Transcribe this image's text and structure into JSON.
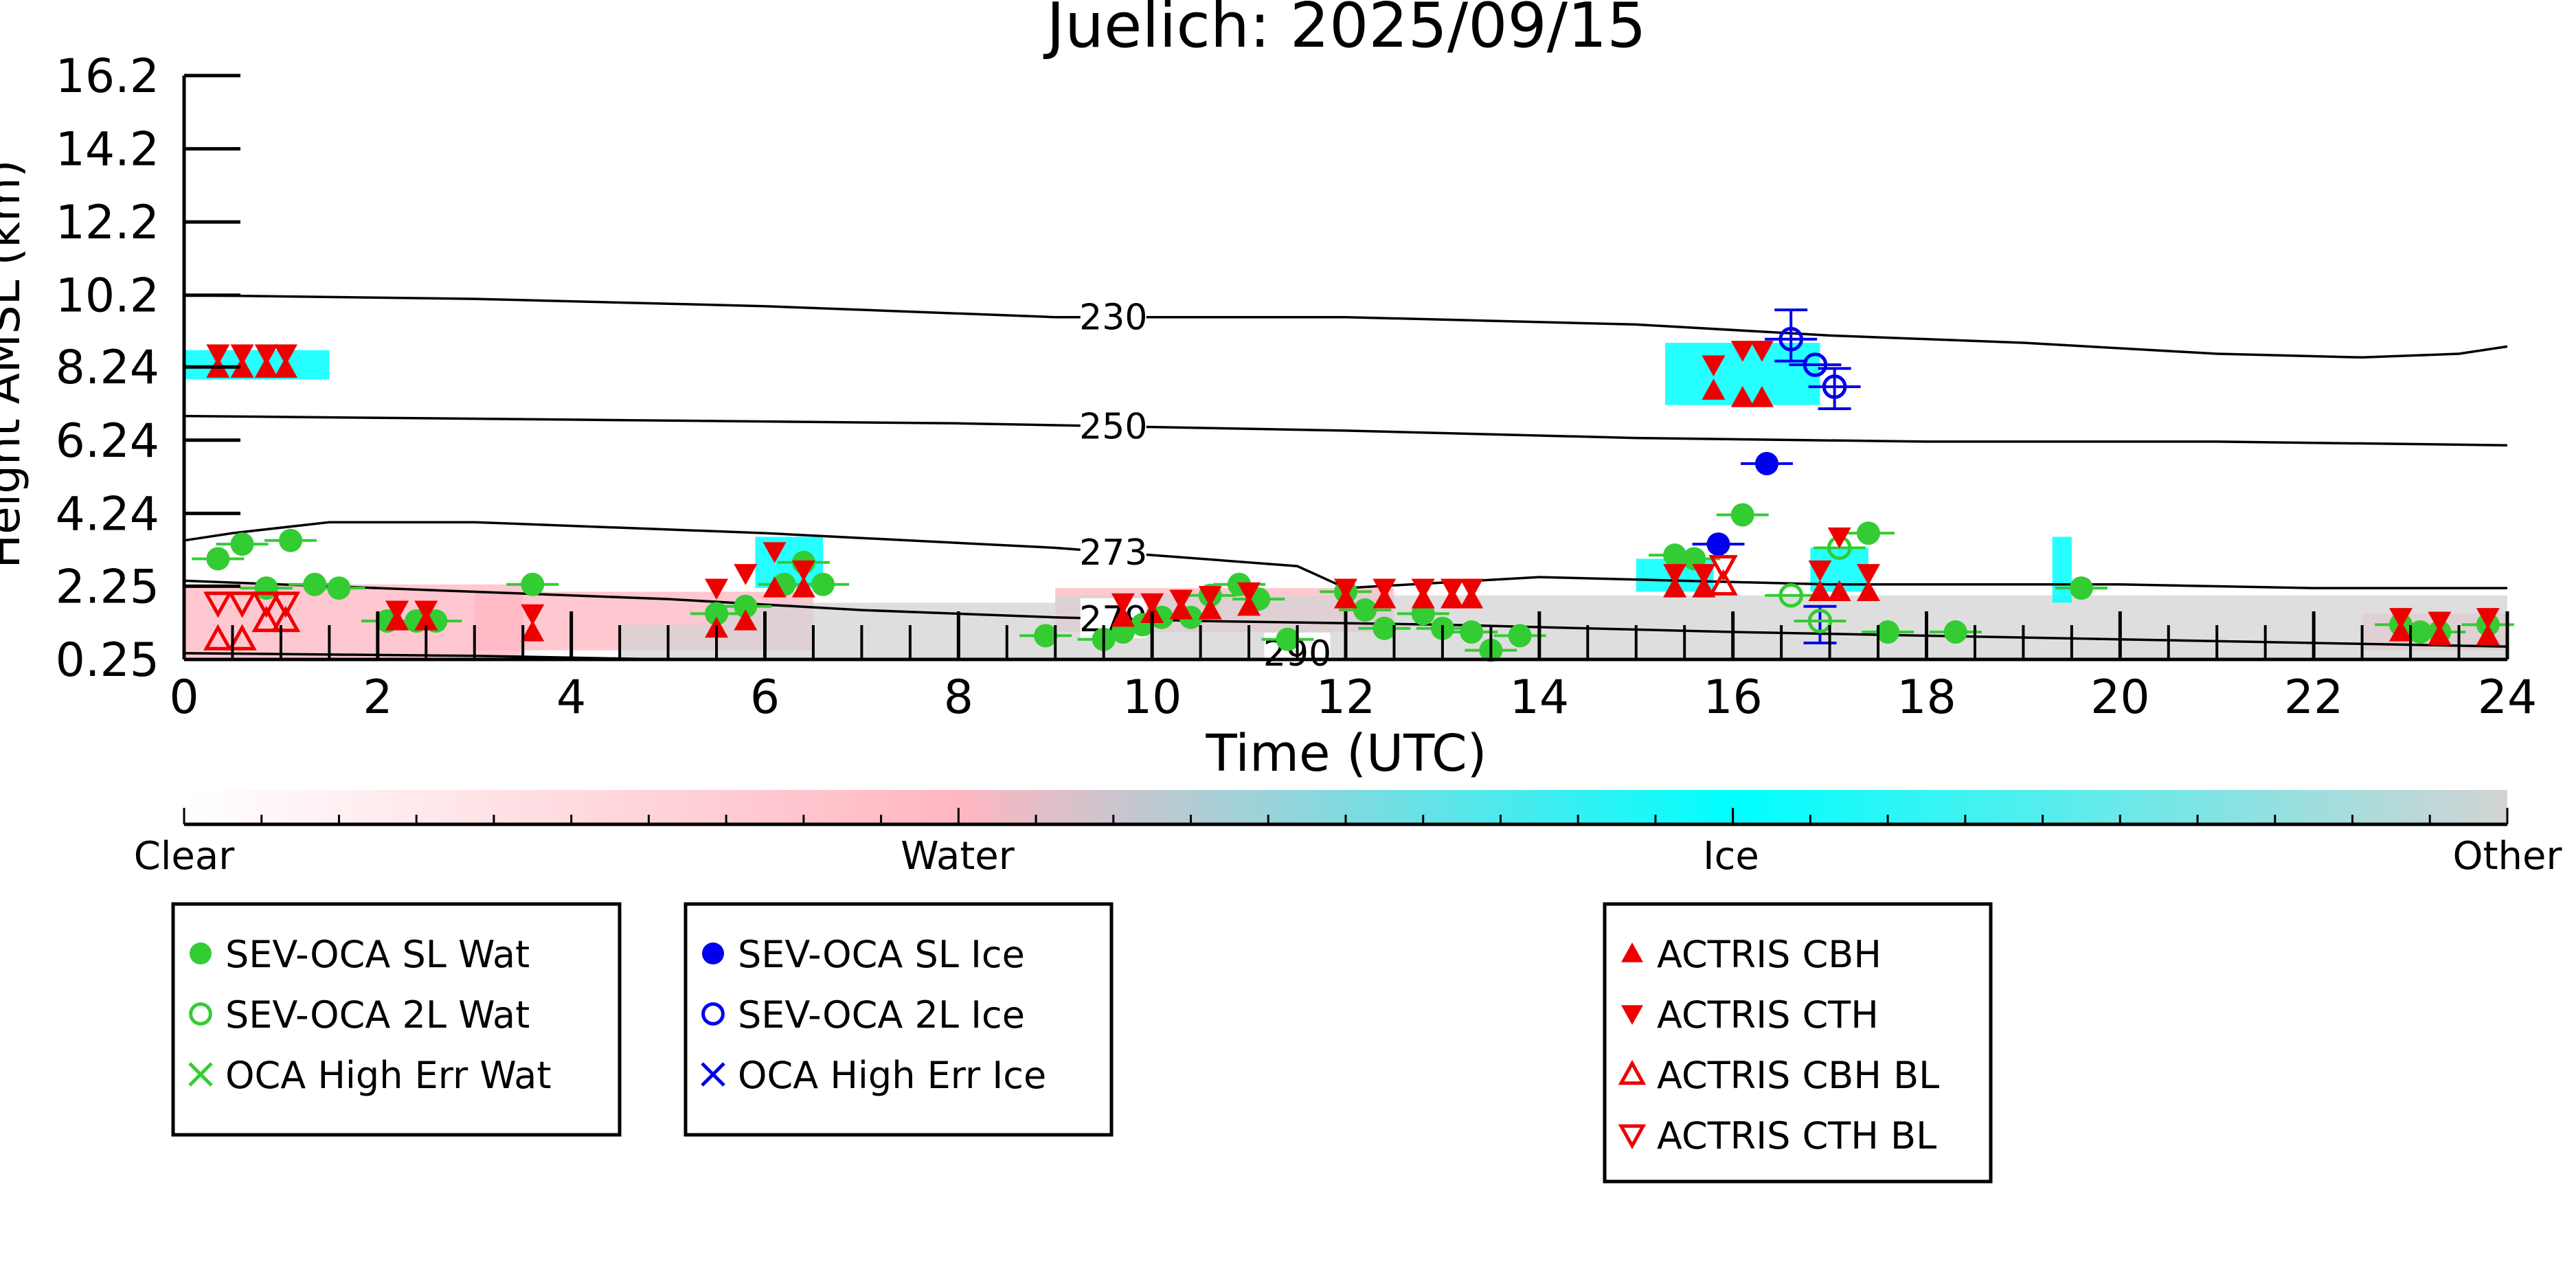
{
  "chart_data": {
    "type": "scatter",
    "title": "Juelich: 2025/09/15",
    "xlabel": "Time (UTC)",
    "ylabel": "Height AMSL (km)",
    "xlim": [
      0,
      24
    ],
    "ylim": [
      0.25,
      16.2
    ],
    "x_ticks": [
      "0",
      "2",
      "4",
      "6",
      "8",
      "10",
      "12",
      "14",
      "16",
      "18",
      "20",
      "22",
      "24"
    ],
    "y_ticks": [
      "0.25",
      "2.25",
      "4.24",
      "6.24",
      "8.24",
      "10.2",
      "12.2",
      "14.2",
      "16.2"
    ],
    "colorbar": {
      "labels": [
        "Clear",
        "Water",
        "Ice",
        "Other"
      ],
      "colors": [
        "#ffffff",
        "#ffb6c1",
        "#00ffff",
        "#d3d3d3"
      ]
    },
    "isotherms": [
      {
        "label": "230",
        "label_x": 9.6,
        "points": [
          [
            0,
            10.2
          ],
          [
            3,
            10.1
          ],
          [
            6,
            9.9
          ],
          [
            9,
            9.6
          ],
          [
            12,
            9.6
          ],
          [
            15,
            9.4
          ],
          [
            17,
            9.1
          ],
          [
            19,
            8.9
          ],
          [
            21,
            8.6
          ],
          [
            22.5,
            8.5
          ],
          [
            23.5,
            8.6
          ],
          [
            24,
            8.8
          ]
        ]
      },
      {
        "label": "250",
        "label_x": 9.6,
        "points": [
          [
            0,
            6.9
          ],
          [
            4,
            6.8
          ],
          [
            8,
            6.7
          ],
          [
            10,
            6.6
          ],
          [
            12,
            6.5
          ],
          [
            15,
            6.3
          ],
          [
            18,
            6.2
          ],
          [
            21,
            6.2
          ],
          [
            24,
            6.1
          ]
        ]
      },
      {
        "label": "273",
        "label_x": 9.6,
        "points": [
          [
            0,
            3.5
          ],
          [
            0.5,
            3.7
          ],
          [
            1.5,
            4.0
          ],
          [
            3,
            4.0
          ],
          [
            6,
            3.7
          ],
          [
            9,
            3.3
          ],
          [
            10.5,
            3.0
          ],
          [
            11.5,
            2.8
          ],
          [
            12,
            2.2
          ],
          [
            14,
            2.5
          ],
          [
            17,
            2.3
          ],
          [
            20,
            2.3
          ],
          [
            22,
            2.2
          ],
          [
            24,
            2.2
          ]
        ]
      },
      {
        "label": "279",
        "label_x": 9.6,
        "points": [
          [
            0,
            2.4
          ],
          [
            2,
            2.2
          ],
          [
            5,
            1.9
          ],
          [
            7,
            1.6
          ],
          [
            9,
            1.4
          ],
          [
            10.5,
            1.3
          ],
          [
            13,
            1.2
          ],
          [
            16,
            1.0
          ],
          [
            18,
            0.9
          ],
          [
            20,
            0.8
          ],
          [
            22,
            0.7
          ],
          [
            24,
            0.6
          ]
        ]
      },
      {
        "label": "290",
        "label_x": 11.5,
        "points": [
          [
            0,
            0.42
          ],
          [
            3,
            0.35
          ],
          [
            5,
            0.25
          ]
        ]
      }
    ],
    "cloud_regions": [
      {
        "phase": "Ice",
        "x0": 0.0,
        "x1": 1.5,
        "y0": 7.9,
        "y1": 8.7
      },
      {
        "phase": "Ice",
        "x0": 15.3,
        "x1": 16.9,
        "y0": 7.2,
        "y1": 8.9
      },
      {
        "phase": "Ice",
        "x0": 5.9,
        "x1": 6.6,
        "y0": 2.2,
        "y1": 3.6
      },
      {
        "phase": "Ice",
        "x0": 15.0,
        "x1": 15.8,
        "y0": 2.1,
        "y1": 3.0
      },
      {
        "phase": "Ice",
        "x0": 16.8,
        "x1": 17.4,
        "y0": 2.1,
        "y1": 3.3
      },
      {
        "phase": "Ice",
        "x0": 19.3,
        "x1": 19.5,
        "y0": 1.8,
        "y1": 3.6
      },
      {
        "phase": "Water",
        "x0": 0.0,
        "x1": 3.5,
        "y0": 0.3,
        "y1": 2.3
      },
      {
        "phase": "Water",
        "x0": 3.0,
        "x1": 6.5,
        "y0": 0.5,
        "y1": 2.1
      },
      {
        "phase": "Water",
        "x0": 9.0,
        "x1": 12.5,
        "y0": 1.0,
        "y1": 2.2
      },
      {
        "phase": "Water",
        "x0": 22.5,
        "x1": 24.0,
        "y0": 0.5,
        "y1": 1.5
      },
      {
        "phase": "Other",
        "x0": 5.5,
        "x1": 9.0,
        "y0": 0.25,
        "y1": 1.8
      },
      {
        "phase": "Other",
        "x0": 9.0,
        "x1": 24.0,
        "y0": 0.25,
        "y1": 2.0
      },
      {
        "phase": "Other",
        "x0": 4.5,
        "x1": 5.5,
        "y0": 0.25,
        "y1": 1.2
      }
    ],
    "series": [
      {
        "name": "SEV-OCA SL Wat",
        "color": "#33cc33",
        "marker": "filled-circle",
        "points": [
          [
            0.35,
            3.0
          ],
          [
            0.6,
            3.4
          ],
          [
            1.1,
            3.5
          ],
          [
            0.85,
            2.2
          ],
          [
            1.35,
            2.3
          ],
          [
            1.6,
            2.2
          ],
          [
            2.1,
            1.3
          ],
          [
            2.4,
            1.3
          ],
          [
            2.6,
            1.3
          ],
          [
            3.6,
            2.3
          ],
          [
            5.5,
            1.5
          ],
          [
            5.8,
            1.7
          ],
          [
            6.4,
            2.9
          ],
          [
            6.6,
            2.3
          ],
          [
            6.2,
            2.3
          ],
          [
            8.9,
            0.9
          ],
          [
            9.5,
            0.8
          ],
          [
            9.7,
            1.0
          ],
          [
            9.9,
            1.2
          ],
          [
            10.1,
            1.4
          ],
          [
            10.4,
            1.4
          ],
          [
            10.6,
            2.0
          ],
          [
            10.9,
            2.3
          ],
          [
            11.1,
            1.9
          ],
          [
            11.4,
            0.8
          ],
          [
            12.0,
            2.1
          ],
          [
            12.2,
            1.6
          ],
          [
            12.4,
            1.1
          ],
          [
            12.8,
            1.5
          ],
          [
            13.0,
            1.1
          ],
          [
            13.3,
            1.0
          ],
          [
            13.5,
            0.5
          ],
          [
            13.8,
            0.9
          ],
          [
            15.4,
            3.1
          ],
          [
            15.6,
            3.0
          ],
          [
            16.1,
            4.2
          ],
          [
            17.4,
            3.7
          ],
          [
            17.6,
            1.0
          ],
          [
            18.3,
            1.0
          ],
          [
            19.6,
            2.2
          ],
          [
            22.9,
            1.2
          ],
          [
            23.1,
            1.0
          ],
          [
            23.3,
            1.0
          ],
          [
            23.8,
            1.2
          ]
        ]
      },
      {
        "name": "SEV-OCA 2L Wat",
        "color": "#33cc33",
        "marker": "open-circle",
        "points": [
          [
            16.6,
            2.0
          ],
          [
            16.9,
            1.3
          ],
          [
            17.1,
            3.3
          ]
        ]
      },
      {
        "name": "OCA High Err Wat",
        "color": "#33cc33",
        "marker": "x",
        "points": []
      },
      {
        "name": "SEV-OCA SL Ice",
        "color": "#0000ee",
        "marker": "filled-circle",
        "points": [
          [
            16.35,
            5.6
          ],
          [
            15.85,
            3.4
          ]
        ]
      },
      {
        "name": "SEV-OCA 2L Ice",
        "color": "#0000ee",
        "marker": "open-circle",
        "points": [
          [
            16.6,
            9.0
          ],
          [
            16.85,
            8.3
          ],
          [
            17.05,
            7.7
          ]
        ]
      },
      {
        "name": "OCA High Err Ice",
        "color": "#0000ee",
        "marker": "x",
        "points": []
      },
      {
        "name": "ACTRIS CBH",
        "color": "#ee0000",
        "marker": "triangle-up",
        "points": [
          [
            0.35,
            8.2
          ],
          [
            0.6,
            8.2
          ],
          [
            0.85,
            8.2
          ],
          [
            1.05,
            8.2
          ],
          [
            15.8,
            7.6
          ],
          [
            16.1,
            7.4
          ],
          [
            16.3,
            7.4
          ],
          [
            2.2,
            1.3
          ],
          [
            2.5,
            1.3
          ],
          [
            3.6,
            1.0
          ],
          [
            5.5,
            1.1
          ],
          [
            5.8,
            1.3
          ],
          [
            6.1,
            2.2
          ],
          [
            6.4,
            2.2
          ],
          [
            9.7,
            1.4
          ],
          [
            10.0,
            1.5
          ],
          [
            10.3,
            1.6
          ],
          [
            10.6,
            1.6
          ],
          [
            11.0,
            1.7
          ],
          [
            12.0,
            1.9
          ],
          [
            12.4,
            1.9
          ],
          [
            12.8,
            1.9
          ],
          [
            13.1,
            1.9
          ],
          [
            13.3,
            1.9
          ],
          [
            15.4,
            2.2
          ],
          [
            15.7,
            2.2
          ],
          [
            16.9,
            2.1
          ],
          [
            17.1,
            2.1
          ],
          [
            17.4,
            2.1
          ],
          [
            22.9,
            1.0
          ],
          [
            23.3,
            0.9
          ],
          [
            23.8,
            0.9
          ]
        ]
      },
      {
        "name": "ACTRIS CTH",
        "color": "#ee0000",
        "marker": "triangle-down",
        "points": [
          [
            0.35,
            8.6
          ],
          [
            0.6,
            8.6
          ],
          [
            0.85,
            8.6
          ],
          [
            1.05,
            8.6
          ],
          [
            15.8,
            8.3
          ],
          [
            16.1,
            8.7
          ],
          [
            16.3,
            8.7
          ],
          [
            2.2,
            1.6
          ],
          [
            2.5,
            1.6
          ],
          [
            3.6,
            1.5
          ],
          [
            5.5,
            2.2
          ],
          [
            5.8,
            2.6
          ],
          [
            6.1,
            3.2
          ],
          [
            6.4,
            2.7
          ],
          [
            9.7,
            1.8
          ],
          [
            10.0,
            1.8
          ],
          [
            10.3,
            1.9
          ],
          [
            10.6,
            2.0
          ],
          [
            11.0,
            2.1
          ],
          [
            12.0,
            2.2
          ],
          [
            12.4,
            2.2
          ],
          [
            12.8,
            2.2
          ],
          [
            13.1,
            2.2
          ],
          [
            13.3,
            2.2
          ],
          [
            15.4,
            2.6
          ],
          [
            15.7,
            2.6
          ],
          [
            16.9,
            2.7
          ],
          [
            17.1,
            3.6
          ],
          [
            17.4,
            2.6
          ],
          [
            22.9,
            1.4
          ],
          [
            23.3,
            1.3
          ],
          [
            23.8,
            1.4
          ]
        ]
      },
      {
        "name": "ACTRIS CBH BL",
        "color": "#ee0000",
        "marker": "open-triangle-up",
        "points": [
          [
            0.35,
            0.8
          ],
          [
            0.6,
            0.8
          ],
          [
            0.85,
            1.3
          ],
          [
            1.05,
            1.3
          ],
          [
            15.9,
            2.3
          ]
        ]
      },
      {
        "name": "ACTRIS CTH BL",
        "color": "#ee0000",
        "marker": "open-triangle-down",
        "points": [
          [
            0.35,
            1.8
          ],
          [
            0.6,
            1.8
          ],
          [
            0.85,
            1.8
          ],
          [
            1.05,
            1.8
          ],
          [
            15.9,
            2.8
          ]
        ]
      }
    ],
    "error_bars": [
      {
        "x": 16.6,
        "y": 9.0,
        "ylow": 8.4,
        "yhigh": 9.8
      },
      {
        "x": 17.05,
        "y": 7.7,
        "ylow": 7.1,
        "yhigh": 8.2
      },
      {
        "x": 16.9,
        "y": 1.3,
        "ylow": 0.7,
        "yhigh": 1.7
      }
    ]
  },
  "legends": [
    {
      "items": [
        "SEV-OCA SL Wat",
        "SEV-OCA 2L Wat",
        "OCA High Err Wat"
      ]
    },
    {
      "items": [
        "SEV-OCA SL Ice",
        "SEV-OCA 2L Ice",
        "OCA High Err Ice"
      ]
    },
    {
      "items": [
        "ACTRIS CBH",
        "ACTRIS CTH",
        "ACTRIS CBH BL",
        "ACTRIS CTH BL"
      ]
    }
  ]
}
